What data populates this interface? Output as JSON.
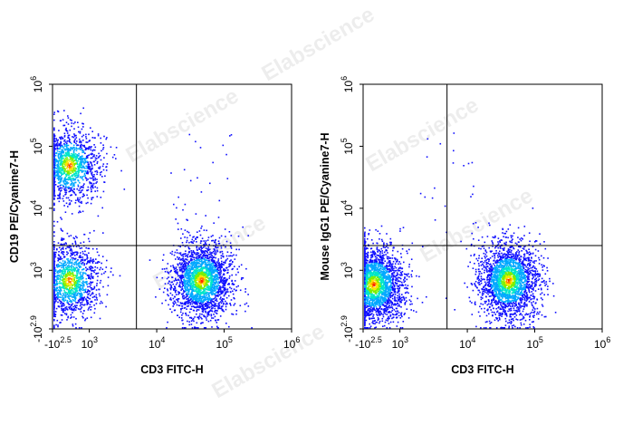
{
  "watermark": "Elabscience",
  "chart_data": [
    {
      "type": "scatter",
      "subtype": "flow-cytometry-density",
      "x_label": "CD3 FITC-H",
      "y_label": "CD19 PE/Cyanine7-H",
      "x_ticks": [
        {
          "value": -316,
          "base": "-10",
          "exp": "2.5"
        },
        {
          "value": 1000,
          "base": "10",
          "exp": "3"
        },
        {
          "value": 10000,
          "base": "10",
          "exp": "4"
        },
        {
          "value": 100000,
          "base": "10",
          "exp": "5"
        },
        {
          "value": 1000000,
          "base": "10",
          "exp": "6"
        }
      ],
      "y_ticks": [
        {
          "value": -794,
          "base": "-10",
          "exp": "2.9"
        },
        {
          "value": 1000,
          "base": "10",
          "exp": "3"
        },
        {
          "value": 10000,
          "base": "10",
          "exp": "4"
        },
        {
          "value": 100000,
          "base": "10",
          "exp": "5"
        },
        {
          "value": 1000000,
          "base": "10",
          "exp": "6"
        }
      ],
      "gate_x": 5000,
      "gate_y": 2500,
      "populations": [
        {
          "x": 500,
          "y": 50000,
          "count": 1300
        },
        {
          "x": 500,
          "y": 700,
          "count": 1300
        },
        {
          "x": 45000,
          "y": 700,
          "count": 2200
        },
        {
          "x": 45000,
          "y": 20000,
          "count": 30
        }
      ]
    },
    {
      "type": "scatter",
      "subtype": "flow-cytometry-density",
      "x_label": "CD3 FITC-H",
      "y_label": "Mouse IgG1 PE/Cyanine7-H",
      "x_ticks": [
        {
          "value": -316,
          "base": "-10",
          "exp": "2.5"
        },
        {
          "value": 1000,
          "base": "10",
          "exp": "3"
        },
        {
          "value": 10000,
          "base": "10",
          "exp": "4"
        },
        {
          "value": 100000,
          "base": "10",
          "exp": "5"
        },
        {
          "value": 1000000,
          "base": "10",
          "exp": "6"
        }
      ],
      "y_ticks": [
        {
          "value": -794,
          "base": "-10",
          "exp": "2.9"
        },
        {
          "value": 1000,
          "base": "10",
          "exp": "3"
        },
        {
          "value": 10000,
          "base": "10",
          "exp": "4"
        },
        {
          "value": 100000,
          "base": "10",
          "exp": "5"
        },
        {
          "value": 1000000,
          "base": "10",
          "exp": "6"
        }
      ],
      "gate_x": 5000,
      "gate_y": 2500,
      "populations": [
        {
          "x": 400,
          "y": 600,
          "count": 2400
        },
        {
          "x": 40000,
          "y": 700,
          "count": 2200
        },
        {
          "x": 5000,
          "y": 20000,
          "count": 25
        }
      ]
    }
  ]
}
